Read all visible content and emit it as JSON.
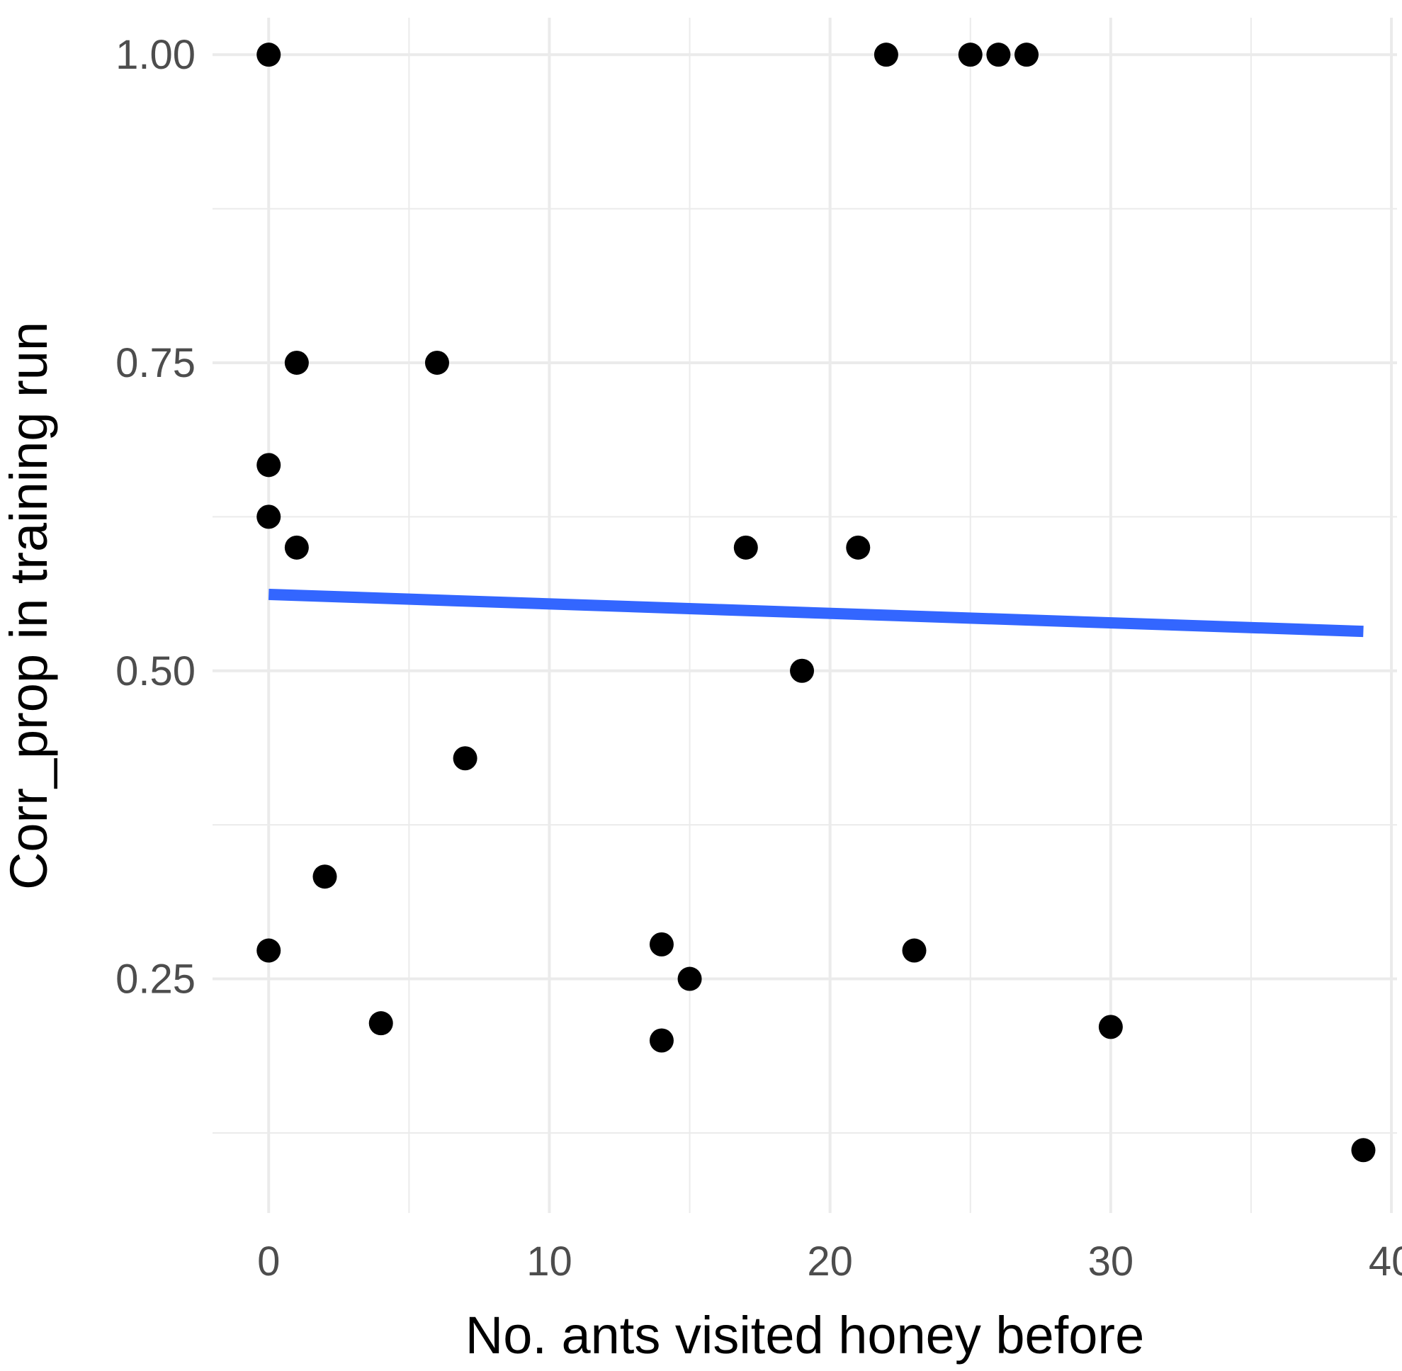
{
  "chart_data": {
    "type": "scatter",
    "title": "",
    "xlabel": "No. ants visited honey before",
    "ylabel": "Corr_prop in training run",
    "xlim": [
      -2,
      40.2
    ],
    "ylim": [
      0.06,
      1.03
    ],
    "x_ticks": [
      0,
      10,
      20,
      30,
      40
    ],
    "x_tick_labels": [
      "0",
      "10",
      "20",
      "30",
      "40"
    ],
    "y_ticks": [
      0.25,
      0.5,
      0.75,
      1.0
    ],
    "y_tick_labels": [
      "0.25",
      "0.50",
      "0.75",
      "1.00"
    ],
    "grid": true,
    "points": [
      {
        "x": 0,
        "y": 1.0
      },
      {
        "x": 22,
        "y": 1.0
      },
      {
        "x": 25,
        "y": 1.0
      },
      {
        "x": 26,
        "y": 1.0
      },
      {
        "x": 27,
        "y": 1.0
      },
      {
        "x": 1,
        "y": 0.75
      },
      {
        "x": 6,
        "y": 0.75
      },
      {
        "x": 0,
        "y": 0.667
      },
      {
        "x": 0,
        "y": 0.625
      },
      {
        "x": 1,
        "y": 0.6
      },
      {
        "x": 17,
        "y": 0.6
      },
      {
        "x": 21,
        "y": 0.6
      },
      {
        "x": 19,
        "y": 0.5
      },
      {
        "x": 7,
        "y": 0.429
      },
      {
        "x": 2,
        "y": 0.333
      },
      {
        "x": 0,
        "y": 0.273
      },
      {
        "x": 14,
        "y": 0.278
      },
      {
        "x": 23,
        "y": 0.273
      },
      {
        "x": 15,
        "y": 0.25
      },
      {
        "x": 4,
        "y": 0.214
      },
      {
        "x": 30,
        "y": 0.211
      },
      {
        "x": 14,
        "y": 0.2
      },
      {
        "x": 39,
        "y": 0.111
      }
    ],
    "trend_line": {
      "x": [
        0,
        39
      ],
      "y": [
        0.562,
        0.532
      ],
      "color": "#3366FF"
    },
    "point_color": "#000000",
    "grid_color": "#EBEBEB"
  }
}
